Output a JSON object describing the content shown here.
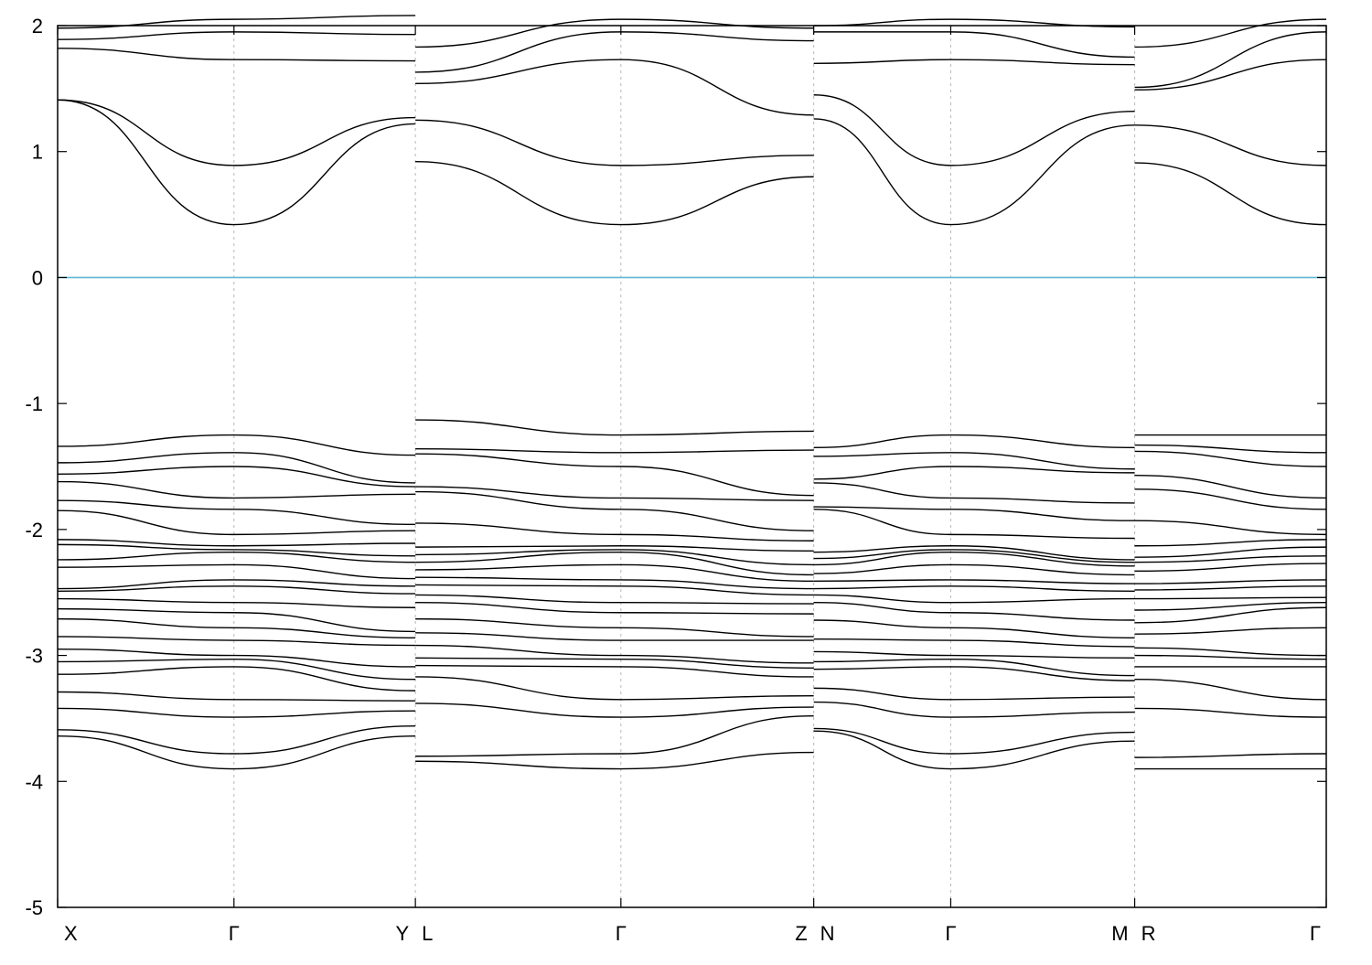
{
  "chart_data": {
    "type": "line",
    "title": "",
    "xlabel": "",
    "ylabel": "",
    "ylim": [
      -5,
      2
    ],
    "yticks": [
      {
        "value": 2,
        "label": "2"
      },
      {
        "value": 1,
        "label": "1"
      },
      {
        "value": 0,
        "label": "0"
      },
      {
        "value": -1,
        "label": "-1"
      },
      {
        "value": -2,
        "label": "-2"
      },
      {
        "value": -3,
        "label": "-3"
      },
      {
        "value": -4,
        "label": "-4"
      },
      {
        "value": -5,
        "label": "-5"
      }
    ],
    "xlim": [
      0,
      10
    ],
    "kpath_labels": [
      {
        "x": 0.0,
        "label": "X"
      },
      {
        "x": 1.39,
        "label": "Γ"
      },
      {
        "x": 2.82,
        "label": "Y"
      },
      {
        "x": 2.82,
        "label": "L"
      },
      {
        "x": 4.44,
        "label": "Γ"
      },
      {
        "x": 5.96,
        "label": "Z"
      },
      {
        "x": 5.96,
        "label": "N"
      },
      {
        "x": 7.04,
        "label": "Γ"
      },
      {
        "x": 8.49,
        "label": "M"
      },
      {
        "x": 8.49,
        "label": "R"
      },
      {
        "x": 10.0,
        "label": "Γ"
      }
    ],
    "high_symmetry_lines": [
      1.39,
      2.82,
      4.44,
      5.96,
      7.04,
      8.49
    ],
    "fermi_level": {
      "value": 0,
      "color": "#5bb8d4"
    },
    "line_color": "#000000",
    "segments": [
      {
        "name": "X-Γ-Y",
        "x_start": 0.0,
        "x_mid": 1.39,
        "x_end": 2.82,
        "bands": [
          [
            1.41,
            0.42,
            1.22
          ],
          [
            1.41,
            0.89,
            1.27
          ],
          [
            1.82,
            1.73,
            1.72
          ],
          [
            1.89,
            1.95,
            1.93
          ],
          [
            1.98,
            2.05,
            2.08
          ],
          [
            -1.34,
            -1.25,
            -1.41
          ],
          [
            -1.47,
            -1.39,
            -1.63
          ],
          [
            -1.56,
            -1.5,
            -1.66
          ],
          [
            -1.62,
            -1.75,
            -1.72
          ],
          [
            -1.77,
            -1.84,
            -1.96
          ],
          [
            -1.85,
            -2.04,
            -2.01
          ],
          [
            -2.08,
            -2.13,
            -2.11
          ],
          [
            -2.12,
            -2.16,
            -2.21
          ],
          [
            -2.24,
            -2.18,
            -2.26
          ],
          [
            -2.3,
            -2.28,
            -2.39
          ],
          [
            -2.47,
            -2.4,
            -2.45
          ],
          [
            -2.49,
            -2.45,
            -2.51
          ],
          [
            -2.55,
            -2.58,
            -2.62
          ],
          [
            -2.63,
            -2.66,
            -2.81
          ],
          [
            -2.71,
            -2.78,
            -2.86
          ],
          [
            -2.85,
            -2.88,
            -2.92
          ],
          [
            -2.95,
            -3.0,
            -3.09
          ],
          [
            -3.05,
            -3.03,
            -3.19
          ],
          [
            -3.15,
            -3.09,
            -3.28
          ],
          [
            -3.29,
            -3.35,
            -3.36
          ],
          [
            -3.42,
            -3.49,
            -3.44
          ],
          [
            -3.59,
            -3.78,
            -3.56
          ],
          [
            -3.64,
            -3.9,
            -3.64
          ]
        ]
      },
      {
        "name": "L-Γ-Z",
        "x_start": 2.82,
        "x_mid": 4.44,
        "x_end": 5.96,
        "bands": [
          [
            0.92,
            0.42,
            0.8
          ],
          [
            1.25,
            0.89,
            0.97
          ],
          [
            1.54,
            1.73,
            1.29
          ],
          [
            1.63,
            1.95,
            1.88
          ],
          [
            1.83,
            2.05,
            1.98
          ],
          [
            -1.13,
            -1.25,
            -1.22
          ],
          [
            -1.36,
            -1.39,
            -1.37
          ],
          [
            -1.4,
            -1.5,
            -1.73
          ],
          [
            -1.66,
            -1.75,
            -1.77
          ],
          [
            -1.7,
            -1.84,
            -2.01
          ],
          [
            -1.95,
            -2.04,
            -2.09
          ],
          [
            -2.14,
            -2.13,
            -2.17
          ],
          [
            -2.2,
            -2.16,
            -2.28
          ],
          [
            -2.26,
            -2.18,
            -2.36
          ],
          [
            -2.32,
            -2.28,
            -2.41
          ],
          [
            -2.38,
            -2.4,
            -2.47
          ],
          [
            -2.44,
            -2.45,
            -2.52
          ],
          [
            -2.52,
            -2.58,
            -2.59
          ],
          [
            -2.58,
            -2.66,
            -2.67
          ],
          [
            -2.71,
            -2.78,
            -2.85
          ],
          [
            -2.82,
            -2.88,
            -2.88
          ],
          [
            -2.92,
            -3.0,
            -3.06
          ],
          [
            -3.02,
            -3.03,
            -3.1
          ],
          [
            -3.08,
            -3.09,
            -3.17
          ],
          [
            -3.17,
            -3.35,
            -3.32
          ],
          [
            -3.38,
            -3.49,
            -3.41
          ],
          [
            -3.8,
            -3.78,
            -3.48
          ],
          [
            -3.84,
            -3.9,
            -3.77
          ]
        ]
      },
      {
        "name": "N-Γ-M",
        "x_start": 5.96,
        "x_mid": 7.04,
        "x_end": 8.49,
        "bands": [
          [
            1.26,
            0.42,
            1.21
          ],
          [
            1.45,
            0.89,
            1.32
          ],
          [
            1.7,
            1.73,
            1.69
          ],
          [
            1.95,
            1.95,
            1.75
          ],
          [
            2.0,
            2.05,
            1.99
          ],
          [
            -1.35,
            -1.25,
            -1.35
          ],
          [
            -1.42,
            -1.39,
            -1.52
          ],
          [
            -1.6,
            -1.5,
            -1.55
          ],
          [
            -1.63,
            -1.75,
            -1.79
          ],
          [
            -1.82,
            -1.84,
            -1.93
          ],
          [
            -1.84,
            -2.04,
            -2.07
          ],
          [
            -2.18,
            -2.13,
            -2.24
          ],
          [
            -2.23,
            -2.16,
            -2.26
          ],
          [
            -2.28,
            -2.18,
            -2.29
          ],
          [
            -2.35,
            -2.28,
            -2.36
          ],
          [
            -2.41,
            -2.4,
            -2.43
          ],
          [
            -2.47,
            -2.45,
            -2.49
          ],
          [
            -2.52,
            -2.58,
            -2.55
          ],
          [
            -2.58,
            -2.66,
            -2.72
          ],
          [
            -2.72,
            -2.78,
            -2.86
          ],
          [
            -2.87,
            -2.88,
            -2.93
          ],
          [
            -2.97,
            -3.0,
            -3.02
          ],
          [
            -3.05,
            -3.03,
            -3.16
          ],
          [
            -3.11,
            -3.09,
            -3.2
          ],
          [
            -3.26,
            -3.35,
            -3.33
          ],
          [
            -3.37,
            -3.49,
            -3.45
          ],
          [
            -3.58,
            -3.78,
            -3.61
          ],
          [
            -3.6,
            -3.9,
            -3.68
          ]
        ]
      },
      {
        "name": "R-Γ",
        "x_start": 8.49,
        "x_end": 10.0,
        "bands": [
          [
            0.91,
            0.42
          ],
          [
            1.21,
            0.89
          ],
          [
            1.49,
            1.73
          ],
          [
            1.51,
            1.95
          ],
          [
            1.83,
            2.05
          ],
          [
            -1.25,
            -1.25
          ],
          [
            -1.33,
            -1.39
          ],
          [
            -1.38,
            -1.5
          ],
          [
            -1.57,
            -1.75
          ],
          [
            -1.68,
            -1.84
          ],
          [
            -1.93,
            -2.04
          ],
          [
            -2.13,
            -2.08
          ],
          [
            -2.22,
            -2.14
          ],
          [
            -2.26,
            -2.21
          ],
          [
            -2.33,
            -2.27
          ],
          [
            -2.43,
            -2.4
          ],
          [
            -2.48,
            -2.45
          ],
          [
            -2.55,
            -2.54
          ],
          [
            -2.64,
            -2.58
          ],
          [
            -2.74,
            -2.62
          ],
          [
            -2.83,
            -2.78
          ],
          [
            -2.94,
            -3.0
          ],
          [
            -3.0,
            -3.03
          ],
          [
            -3.09,
            -3.09
          ],
          [
            -3.19,
            -3.35
          ],
          [
            -3.42,
            -3.49
          ],
          [
            -3.81,
            -3.78
          ],
          [
            -3.9,
            -3.9
          ]
        ]
      }
    ]
  }
}
